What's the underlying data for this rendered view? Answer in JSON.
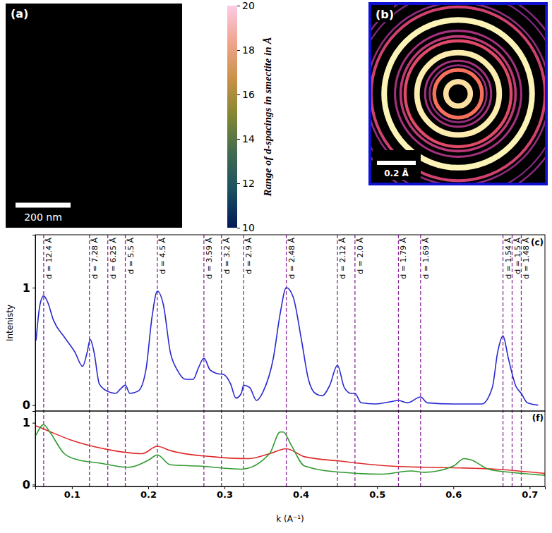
{
  "chart_data": [
    {
      "type": "image",
      "title": "(a)",
      "scale_bar": {
        "value": 200,
        "label": "200 nm"
      },
      "colorbar": {
        "title": "Range of d-spacings in smectite in Å",
        "range": [
          10,
          20
        ],
        "ticks": [
          10,
          12,
          14,
          16,
          18,
          20
        ]
      }
    },
    {
      "type": "image",
      "title": "(b)",
      "scale_bar": {
        "value": 0.2,
        "label": "0.2 Å"
      }
    },
    {
      "type": "line",
      "title": "(c)",
      "y_label": "Intenisty",
      "xlim": [
        0.052,
        0.72
      ],
      "ylim": [
        -0.05,
        1.45
      ],
      "yticks": [
        0,
        1
      ],
      "tick_labels": "y",
      "series": [
        {
          "color": "#2828d0",
          "x": [
            0.053,
            0.058,
            0.063,
            0.068,
            0.076,
            0.09,
            0.104,
            0.114,
            0.12,
            0.124,
            0.129,
            0.136,
            0.146,
            0.157,
            0.164,
            0.17,
            0.176,
            0.187,
            0.197,
            0.205,
            0.212,
            0.22,
            0.229,
            0.238,
            0.249,
            0.259,
            0.266,
            0.273,
            0.281,
            0.29,
            0.299,
            0.308,
            0.315,
            0.322,
            0.325,
            0.333,
            0.342,
            0.351,
            0.364,
            0.373,
            0.381,
            0.39,
            0.401,
            0.41,
            0.419,
            0.428,
            0.438,
            0.448,
            0.457,
            0.466,
            0.471,
            0.479,
            0.498,
            0.518,
            0.528,
            0.54,
            0.557,
            0.566,
            0.6,
            0.637,
            0.651,
            0.658,
            0.665,
            0.672,
            0.682,
            0.689,
            0.697,
            0.711
          ],
          "values": [
            0.55,
            0.85,
            0.93,
            0.88,
            0.72,
            0.58,
            0.45,
            0.33,
            0.45,
            0.56,
            0.45,
            0.18,
            0.12,
            0.1,
            0.14,
            0.17,
            0.1,
            0.12,
            0.3,
            0.75,
            0.97,
            0.85,
            0.45,
            0.3,
            0.22,
            0.22,
            0.32,
            0.4,
            0.3,
            0.27,
            0.26,
            0.18,
            0.06,
            0.1,
            0.17,
            0.15,
            0.04,
            0.12,
            0.4,
            0.78,
            1.0,
            0.92,
            0.55,
            0.22,
            0.1,
            0.08,
            0.17,
            0.34,
            0.15,
            0.1,
            0.1,
            0.02,
            0.01,
            0.03,
            0.04,
            0.02,
            0.07,
            0.02,
            0.01,
            0.01,
            0.15,
            0.45,
            0.59,
            0.4,
            0.16,
            0.1,
            0.02,
            0.0
          ]
        }
      ],
      "annotations": [
        {
          "x": 0.063,
          "label": "d = 12.4 Å"
        },
        {
          "x": 0.123,
          "label": "d = 7.28 Å"
        },
        {
          "x": 0.147,
          "label": "d = 6.25 Å"
        },
        {
          "x": 0.17,
          "label": "d = 5.5 Å"
        },
        {
          "x": 0.212,
          "label": "d = 4.5 Å"
        },
        {
          "x": 0.273,
          "label": "d = 3.59 Å"
        },
        {
          "x": 0.296,
          "label": "d = 3.2 Å"
        },
        {
          "x": 0.325,
          "label": "d = 2.9 Å"
        },
        {
          "x": 0.381,
          "label": "d = 2.48 Å"
        },
        {
          "x": 0.448,
          "label": "d = 2.12 Å"
        },
        {
          "x": 0.471,
          "label": "d = 2.0 Å"
        },
        {
          "x": 0.528,
          "label": "d = 1.79 Å"
        },
        {
          "x": 0.557,
          "label": "d = 1.69 Å"
        },
        {
          "x": 0.665,
          "label": "d = 1.54 Å"
        },
        {
          "x": 0.677,
          "label": "d = 1.5 Å"
        },
        {
          "x": 0.689,
          "label": "d = 1.48 Å"
        }
      ]
    },
    {
      "type": "line",
      "title": "(f)",
      "x_label": "k (A⁻¹)",
      "xlim": [
        0.052,
        0.72
      ],
      "xticks": [
        0.1,
        0.2,
        0.3,
        0.4,
        0.5,
        0.6,
        0.7
      ],
      "ylim": [
        -0.03,
        1.19
      ],
      "yticks": [
        0,
        1
      ],
      "series": [
        {
          "color": "#e02a2a",
          "x": [
            0.053,
            0.063,
            0.099,
            0.146,
            0.192,
            0.212,
            0.229,
            0.285,
            0.331,
            0.359,
            0.381,
            0.405,
            0.452,
            0.517,
            0.563,
            0.609,
            0.656,
            0.72
          ],
          "values": [
            0.95,
            0.9,
            0.72,
            0.57,
            0.5,
            0.62,
            0.55,
            0.45,
            0.42,
            0.5,
            0.58,
            0.45,
            0.38,
            0.3,
            0.28,
            0.27,
            0.25,
            0.18
          ]
        },
        {
          "color": "#2e9a2e",
          "x": [
            0.053,
            0.063,
            0.071,
            0.09,
            0.108,
            0.136,
            0.173,
            0.201,
            0.212,
            0.229,
            0.266,
            0.322,
            0.359,
            0.373,
            0.377,
            0.387,
            0.405,
            0.452,
            0.507,
            0.544,
            0.563,
            0.6,
            0.614,
            0.623,
            0.646,
            0.674,
            0.72
          ],
          "values": [
            0.8,
            0.97,
            0.85,
            0.5,
            0.4,
            0.35,
            0.28,
            0.4,
            0.48,
            0.32,
            0.3,
            0.25,
            0.5,
            0.85,
            0.85,
            0.65,
            0.3,
            0.2,
            0.17,
            0.22,
            0.2,
            0.3,
            0.42,
            0.4,
            0.25,
            0.2,
            0.15
          ]
        }
      ]
    }
  ]
}
